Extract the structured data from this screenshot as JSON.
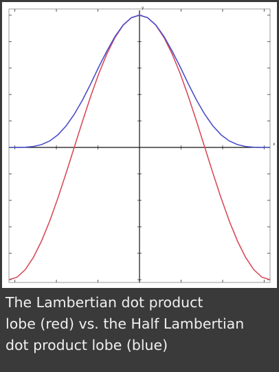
{
  "caption": {
    "line1": "The Lambertian dot product",
    "line2": "lobe (red) vs. the Half Lambertian",
    "line3": "dot product lobe (blue)"
  },
  "chart_data": {
    "type": "line",
    "title": "",
    "xlabel": "",
    "ylabel": "",
    "xlim": [
      -3.1416,
      3.1416
    ],
    "ylim": [
      -1,
      1
    ],
    "grid": false,
    "axis_labels": {
      "x": "x",
      "y": "y"
    },
    "series": [
      {
        "description": "Lambertian: cos(x)",
        "color": "#d94a5a",
        "x": [
          -3.1416,
          -2.9452,
          -2.7489,
          -2.5525,
          -2.3562,
          -2.1598,
          -1.9635,
          -1.7671,
          -1.5708,
          -1.3744,
          -1.1781,
          -0.9817,
          -0.7854,
          -0.589,
          -0.3927,
          -0.1963,
          0,
          0.1963,
          0.3927,
          0.589,
          0.7854,
          0.9817,
          1.1781,
          1.3744,
          1.5708,
          1.7671,
          1.9635,
          2.1598,
          2.3562,
          2.5525,
          2.7489,
          2.9452,
          3.1416
        ],
        "y": [
          -1,
          -0.981,
          -0.924,
          -0.831,
          -0.707,
          -0.556,
          -0.383,
          -0.195,
          0,
          0.195,
          0.383,
          0.556,
          0.707,
          0.831,
          0.924,
          0.981,
          1,
          0.981,
          0.924,
          0.831,
          0.707,
          0.556,
          0.383,
          0.195,
          0,
          -0.195,
          -0.383,
          -0.556,
          -0.707,
          -0.831,
          -0.924,
          -0.981,
          -1
        ]
      },
      {
        "description": "Half Lambertian: ((cos(x)+1)/2)^2",
        "color": "#4a4ec8",
        "x": [
          -3.1416,
          -2.9452,
          -2.7489,
          -2.5525,
          -2.3562,
          -2.1598,
          -1.9635,
          -1.7671,
          -1.5708,
          -1.3744,
          -1.1781,
          -0.9817,
          -0.7854,
          -0.589,
          -0.3927,
          -0.1963,
          0,
          0.1963,
          0.3927,
          0.589,
          0.7854,
          0.9817,
          1.1781,
          1.3744,
          1.5708,
          1.7671,
          1.9635,
          2.1598,
          2.3562,
          2.5525,
          2.7489,
          2.9452,
          3.1416
        ],
        "y": [
          0,
          0.0001,
          0.0014,
          0.0071,
          0.0214,
          0.049,
          0.0952,
          0.1621,
          0.25,
          0.3568,
          0.4781,
          0.6075,
          0.7286,
          0.8388,
          0.9254,
          0.9808,
          1,
          0.9808,
          0.9254,
          0.8388,
          0.7286,
          0.6075,
          0.4781,
          0.3568,
          0.25,
          0.1621,
          0.0952,
          0.049,
          0.0214,
          0.0071,
          0.0014,
          0.0001,
          0
        ]
      }
    ]
  }
}
